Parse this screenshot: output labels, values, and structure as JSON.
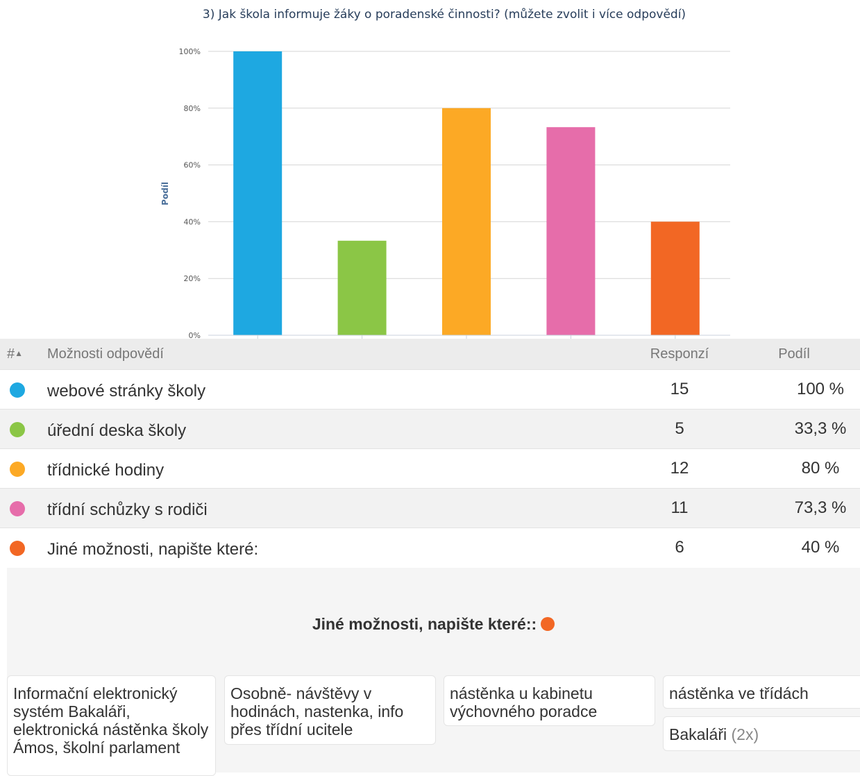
{
  "chart_data": {
    "type": "bar",
    "title": "3) Jak škola informuje žáky o poradenské činnosti? (můžete zvolit i více odpovědí)",
    "ylabel": "Podíl",
    "xlabel": "",
    "ylim": [
      0,
      100
    ],
    "yticks": [
      "0%",
      "20%",
      "40%",
      "60%",
      "80%",
      "100%"
    ],
    "grid": true,
    "categories": [
      "webové stránky školy",
      "úřední deska školy",
      "třídnické hodiny",
      "třídní schůzky s rodiči",
      "Jiné možnosti, napište které:"
    ],
    "values": [
      100,
      33.3,
      80,
      73.3,
      40
    ],
    "colors": [
      "#1ea8e1",
      "#8bc646",
      "#fca925",
      "#e66daa",
      "#f26724"
    ]
  },
  "table": {
    "headers": {
      "hash": "#",
      "options": "Možnosti odpovědí",
      "responses": "Responzí",
      "share": "Podíl"
    },
    "rows": [
      {
        "label": "webové stránky školy",
        "responses": "15",
        "share": "100 %"
      },
      {
        "label": "úřední deska školy",
        "responses": "5",
        "share": "33,3 %"
      },
      {
        "label": "třídnické hodiny",
        "responses": "12",
        "share": "80 %"
      },
      {
        "label": "třídní schůzky s rodiči",
        "responses": "11",
        "share": "73,3 %"
      },
      {
        "label": "Jiné možnosti, napište které:",
        "responses": "6",
        "share": "40 %"
      }
    ]
  },
  "other": {
    "heading": "Jiné možnosti, napište které::",
    "answers": [
      {
        "text": "Informační elektronický systém Bakaláři, elektronická nástěnka školy Ámos, školní parlament",
        "count": ""
      },
      {
        "text": "Osobně- návštěvy v hodinách, nastenka, info přes třídní ucitele",
        "count": ""
      },
      {
        "text": "nástěnka u kabinetu výchovného poradce",
        "count": ""
      },
      {
        "text": "nástěnka ve třídách",
        "count": ""
      },
      {
        "text": "Bakaláři",
        "count": "(2x)"
      }
    ]
  }
}
